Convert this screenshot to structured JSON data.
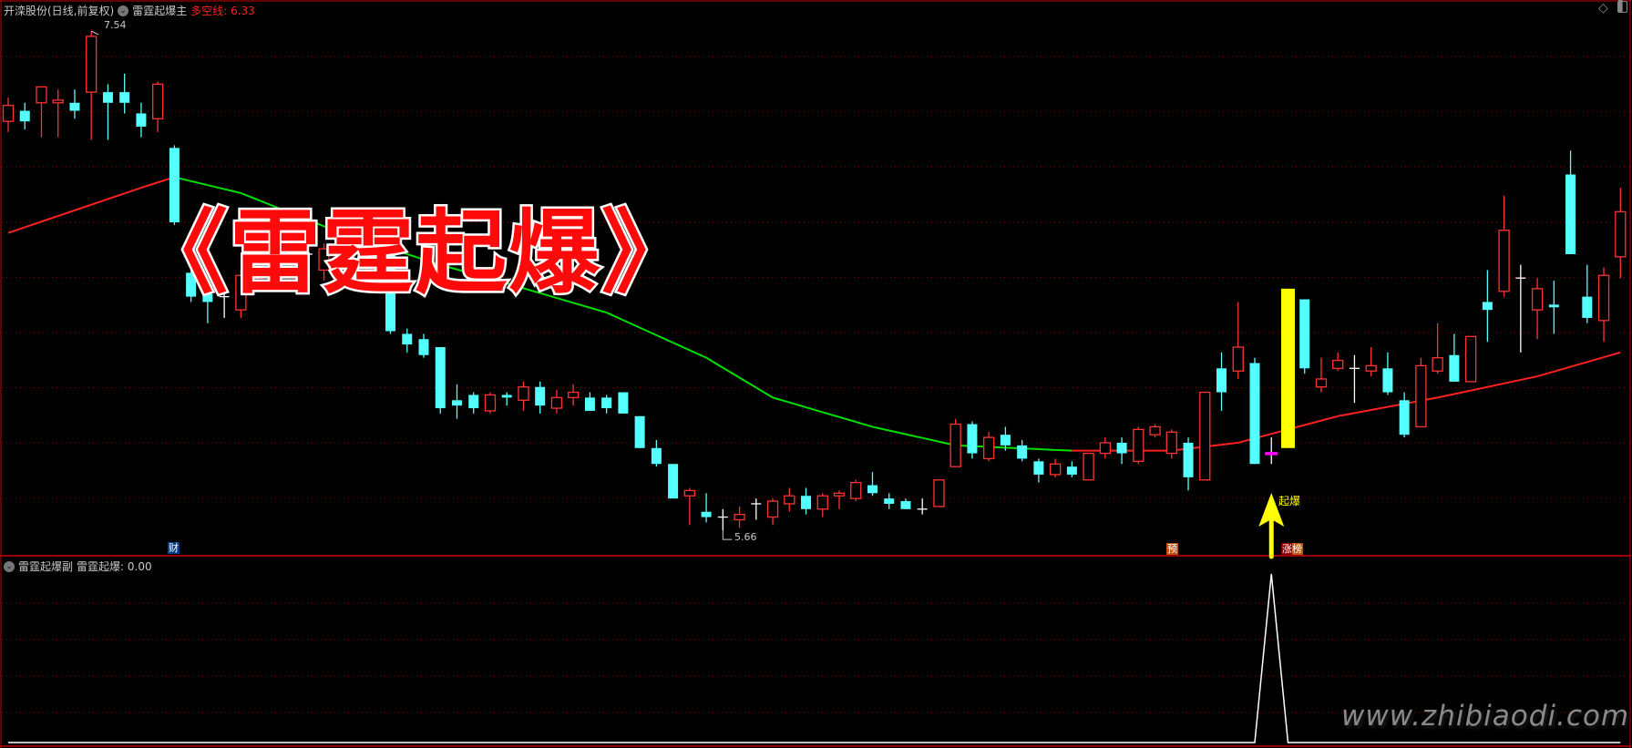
{
  "header": {
    "stock": "开滦股份(日线,前复权)",
    "indicator": "雷霆起爆主",
    "ma_label": "多空线",
    "ma_value": "6.33"
  },
  "sub_header": {
    "indicator": "雷霆起爆副",
    "series_label": "雷霆起爆",
    "series_value": "0.00"
  },
  "overlay_title": "《雷霆起爆》",
  "watermark": "www.zhibiaodi.com",
  "annotations": {
    "high_label": "7.54",
    "low_label": "5.66",
    "tag_cai": "财",
    "tag_yu": "预",
    "tag_zhangbang": "涨榜",
    "signal_label": "起爆"
  },
  "colors": {
    "up": "#ff3232",
    "down": "#54ffff",
    "doji": "#ffffff",
    "limit_up": "#ffff00",
    "ma_up": "#ff2020",
    "ma_down": "#00e000",
    "signal_arrow": "#ffff00",
    "grid": "#8b0000",
    "border": "#c00000"
  },
  "icons": [
    "chevron-down-icon",
    "diamond-icon",
    "panel-toggle-icon"
  ],
  "chart_data": {
    "type": "candlestick",
    "candle_format": [
      "open",
      "high",
      "low",
      "close"
    ],
    "candles": [
      [
        7.2,
        7.29,
        7.16,
        7.26
      ],
      [
        7.24,
        7.27,
        7.17,
        7.2
      ],
      [
        7.27,
        7.33,
        7.14,
        7.33
      ],
      [
        7.27,
        7.32,
        7.14,
        7.28
      ],
      [
        7.27,
        7.32,
        7.21,
        7.24
      ],
      [
        7.31,
        7.54,
        7.13,
        7.52
      ],
      [
        7.31,
        7.34,
        7.13,
        7.27
      ],
      [
        7.31,
        7.38,
        7.23,
        7.27
      ],
      [
        7.23,
        7.27,
        7.14,
        7.18
      ],
      [
        7.21,
        7.35,
        7.16,
        7.34
      ],
      [
        7.1,
        7.11,
        6.81,
        6.82
      ],
      [
        6.63,
        6.66,
        6.52,
        6.54
      ],
      [
        6.55,
        6.6,
        6.44,
        6.52
      ],
      [
        6.54,
        6.56,
        6.46,
        6.54
      ],
      [
        6.49,
        6.64,
        6.46,
        6.62
      ],
      [
        6.61,
        6.68,
        6.58,
        6.68
      ],
      [
        6.74,
        6.76,
        6.62,
        6.64
      ],
      [
        6.72,
        6.75,
        6.66,
        6.68
      ],
      [
        6.7,
        6.72,
        6.58,
        6.7
      ],
      [
        6.64,
        6.74,
        6.6,
        6.72
      ],
      [
        6.72,
        6.75,
        6.64,
        6.66
      ],
      [
        6.66,
        6.76,
        6.62,
        6.74
      ],
      [
        6.64,
        6.78,
        6.6,
        6.76
      ],
      [
        6.72,
        6.74,
        6.4,
        6.41
      ],
      [
        6.4,
        6.42,
        6.33,
        6.36
      ],
      [
        6.38,
        6.4,
        6.31,
        6.32
      ],
      [
        6.35,
        6.35,
        6.1,
        6.12
      ],
      [
        6.15,
        6.21,
        6.08,
        6.13
      ],
      [
        6.17,
        6.18,
        6.1,
        6.12
      ],
      [
        6.11,
        6.18,
        6.1,
        6.17
      ],
      [
        6.17,
        6.18,
        6.13,
        6.16
      ],
      [
        6.15,
        6.22,
        6.11,
        6.2
      ],
      [
        6.2,
        6.22,
        6.1,
        6.13
      ],
      [
        6.12,
        6.19,
        6.1,
        6.16
      ],
      [
        6.16,
        6.21,
        6.13,
        6.18
      ],
      [
        6.16,
        6.18,
        6.11,
        6.11
      ],
      [
        6.16,
        6.17,
        6.1,
        6.12
      ],
      [
        6.18,
        6.18,
        6.1,
        6.1
      ],
      [
        6.09,
        6.09,
        5.97,
        5.97
      ],
      [
        5.97,
        6.0,
        5.9,
        5.91
      ],
      [
        5.91,
        5.91,
        5.78,
        5.78
      ],
      [
        5.79,
        5.82,
        5.68,
        5.81
      ],
      [
        5.73,
        5.8,
        5.69,
        5.71
      ],
      [
        5.71,
        5.74,
        5.66,
        5.71
      ],
      [
        5.7,
        5.75,
        5.67,
        5.72
      ],
      [
        5.76,
        5.78,
        5.7,
        5.76
      ],
      [
        5.71,
        5.78,
        5.68,
        5.77
      ],
      [
        5.76,
        5.82,
        5.73,
        5.79
      ],
      [
        5.79,
        5.82,
        5.72,
        5.74
      ],
      [
        5.74,
        5.8,
        5.71,
        5.79
      ],
      [
        5.79,
        5.81,
        5.74,
        5.8
      ],
      [
        5.78,
        5.85,
        5.77,
        5.84
      ],
      [
        5.83,
        5.88,
        5.79,
        5.8
      ],
      [
        5.78,
        5.8,
        5.74,
        5.76
      ],
      [
        5.77,
        5.78,
        5.74,
        5.74
      ],
      [
        5.74,
        5.78,
        5.72,
        5.74
      ],
      [
        5.75,
        5.85,
        5.75,
        5.85
      ],
      [
        5.9,
        6.08,
        5.9,
        6.06
      ],
      [
        6.06,
        6.07,
        5.93,
        5.95
      ],
      [
        5.93,
        6.03,
        5.92,
        6.01
      ],
      [
        6.02,
        6.05,
        5.96,
        5.98
      ],
      [
        5.98,
        6.0,
        5.92,
        5.93
      ],
      [
        5.92,
        5.93,
        5.84,
        5.87
      ],
      [
        5.87,
        5.93,
        5.86,
        5.91
      ],
      [
        5.9,
        5.92,
        5.86,
        5.87
      ],
      [
        5.85,
        5.95,
        5.85,
        5.95
      ],
      [
        5.95,
        6.01,
        5.93,
        5.99
      ],
      [
        5.99,
        6.01,
        5.91,
        5.95
      ],
      [
        5.92,
        6.05,
        5.91,
        6.04
      ],
      [
        6.02,
        6.06,
        6.01,
        6.05
      ],
      [
        5.95,
        6.04,
        5.93,
        6.03
      ],
      [
        5.99,
        6.01,
        5.81,
        5.86
      ],
      [
        5.85,
        6.18,
        5.85,
        6.18
      ],
      [
        6.27,
        6.33,
        6.11,
        6.18
      ],
      [
        6.26,
        6.52,
        6.23,
        6.35
      ],
      [
        6.29,
        6.31,
        5.91,
        5.91
      ],
      [
        5.95,
        6.01,
        5.91,
        5.95
      ],
      [
        5.97,
        6.57,
        5.97,
        6.57
      ],
      [
        6.53,
        6.53,
        6.25,
        6.27
      ],
      [
        6.2,
        6.31,
        6.18,
        6.23
      ],
      [
        6.27,
        6.33,
        6.26,
        6.3
      ],
      [
        6.27,
        6.32,
        6.14,
        6.27
      ],
      [
        6.26,
        6.35,
        6.24,
        6.28
      ],
      [
        6.27,
        6.33,
        6.17,
        6.18
      ],
      [
        6.15,
        6.18,
        6.01,
        6.02
      ],
      [
        6.05,
        6.31,
        6.05,
        6.28
      ],
      [
        6.26,
        6.44,
        6.25,
        6.31
      ],
      [
        6.32,
        6.4,
        6.22,
        6.22
      ],
      [
        6.22,
        6.39,
        6.22,
        6.39
      ],
      [
        6.52,
        6.64,
        6.37,
        6.49
      ],
      [
        6.56,
        6.92,
        6.54,
        6.79
      ],
      [
        6.61,
        6.66,
        6.33,
        6.61
      ],
      [
        6.49,
        6.61,
        6.38,
        6.57
      ],
      [
        6.51,
        6.6,
        6.4,
        6.5
      ],
      [
        7.0,
        7.09,
        6.7,
        6.7
      ],
      [
        6.54,
        6.66,
        6.44,
        6.46
      ],
      [
        6.45,
        6.65,
        6.37,
        6.62
      ],
      [
        6.69,
        6.95,
        6.61,
        6.86
      ]
    ],
    "limit_up_index": 77,
    "signal_marker_index": 76,
    "ma_line": {
      "name": "多空线",
      "points": [
        [
          0,
          6.78
        ],
        [
          8,
          6.95
        ],
        [
          10,
          6.99
        ],
        [
          14,
          6.93
        ],
        [
          20,
          6.78
        ],
        [
          26,
          6.66
        ],
        [
          30,
          6.59
        ],
        [
          36,
          6.48
        ],
        [
          42,
          6.31
        ],
        [
          46,
          6.16
        ],
        [
          52,
          6.05
        ],
        [
          57,
          5.98
        ],
        [
          64,
          5.96
        ],
        [
          70,
          5.96
        ],
        [
          74,
          5.99
        ],
        [
          80,
          6.09
        ],
        [
          86,
          6.16
        ],
        [
          92,
          6.24
        ],
        [
          97,
          6.33
        ]
      ]
    },
    "price_range": [
      5.56,
      7.66
    ],
    "sub_series": {
      "name": "雷霆起爆",
      "signal_index": 76,
      "values_default": 0,
      "signal_value": 1,
      "ylim": [
        0,
        1
      ]
    },
    "grid": true
  }
}
